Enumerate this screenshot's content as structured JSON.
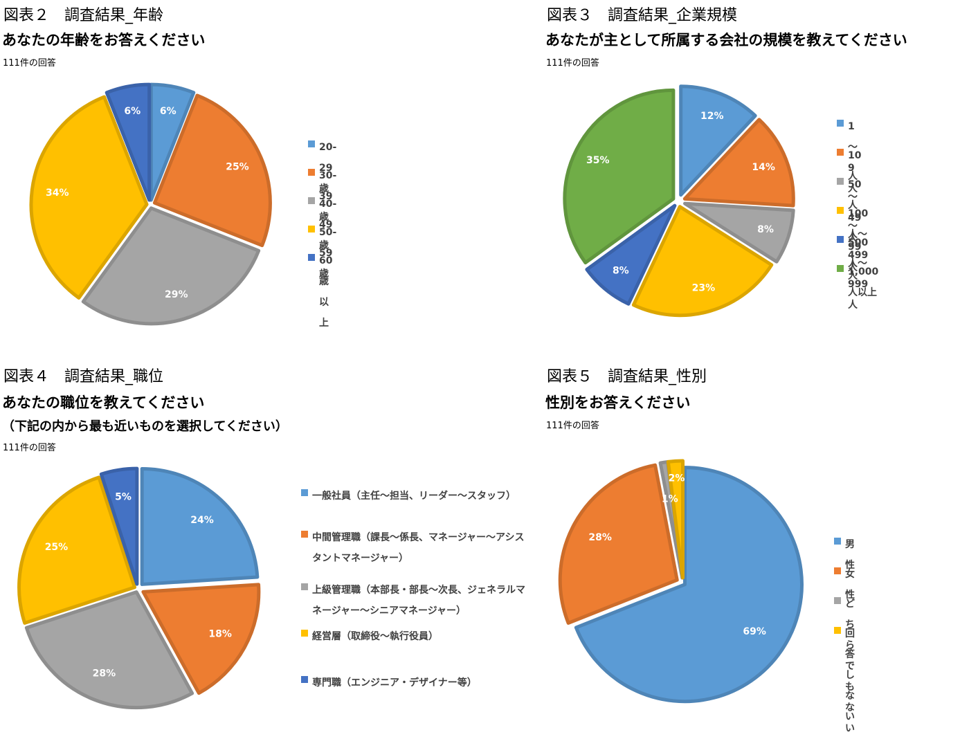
{
  "charts": {
    "age": {
      "figure": "図表２　調査結果_年齢",
      "question": "あなたの年齢をお答えください",
      "count": "111件の回答"
    },
    "company_size": {
      "figure": "図表３　調査結果_企業規模",
      "question": "あなたが主として所属する会社の規模を教えてください",
      "count": "111件の回答"
    },
    "position": {
      "figure": "図表４　調査結果_職位",
      "question": "あなたの職位を教えてください",
      "question_sub": "（下記の内から最も近いものを選択してください）",
      "count": "111件の回答"
    },
    "gender": {
      "figure": "図表５　調査結果_性別",
      "question": "性別をお答えください",
      "count": "111件の回答"
    }
  },
  "chart_data": [
    {
      "type": "pie",
      "title": "あなたの年齢をお答えください",
      "categories": [
        "20-29歳",
        "30-39歳",
        "40-49歳",
        "50-59歳",
        "60歳以上"
      ],
      "values": [
        6,
        25,
        29,
        34,
        6
      ],
      "labels": [
        "6%",
        "25%",
        "29%",
        "34%",
        "6%"
      ],
      "colors": [
        "#5B9BD5",
        "#ED7D31",
        "#A5A5A5",
        "#FFC000",
        "#4472C4"
      ],
      "legend_position": "right"
    },
    {
      "type": "pie",
      "title": "あなたが主として所属する会社の規模を教えてください",
      "categories": [
        "1～9人",
        "10人～49人",
        "50人～99人",
        "100人～499人",
        "500人～999人",
        "1,000人以上"
      ],
      "values": [
        12,
        14,
        8,
        23,
        8,
        35
      ],
      "labels": [
        "12%",
        "14%",
        "8%",
        "23%",
        "8%",
        "35%"
      ],
      "colors": [
        "#5B9BD5",
        "#ED7D31",
        "#A5A5A5",
        "#FFC000",
        "#4472C4",
        "#70AD47"
      ],
      "legend_position": "right"
    },
    {
      "type": "pie",
      "title": "あなたの職位を教えてください",
      "categories": [
        "一般社員（主任～担当、リーダー～スタッフ）",
        "中間管理職（課長～係長、マネージャー～アシスタントマネージャー）",
        "上級管理職（本部長・部長～次長、ジェネラルマネージャー～シニアマネージャー）",
        "経営層（取締役～執行役員）",
        "専門職（エンジニア・デザイナー等）"
      ],
      "values": [
        24,
        18,
        28,
        25,
        5
      ],
      "labels": [
        "24%",
        "18%",
        "28%",
        "25%",
        "5%"
      ],
      "colors": [
        "#5B9BD5",
        "#ED7D31",
        "#A5A5A5",
        "#FFC000",
        "#4472C4"
      ],
      "legend_position": "right"
    },
    {
      "type": "pie",
      "title": "性別をお答えください",
      "categories": [
        "男性",
        "女性",
        "どちらでもない",
        "回答しない"
      ],
      "values": [
        69,
        28,
        1,
        2
      ],
      "labels": [
        "69%",
        "28%",
        "1%",
        "2%"
      ],
      "colors": [
        "#5B9BD5",
        "#ED7D31",
        "#A5A5A5",
        "#FFC000"
      ],
      "legend_position": "right"
    }
  ]
}
